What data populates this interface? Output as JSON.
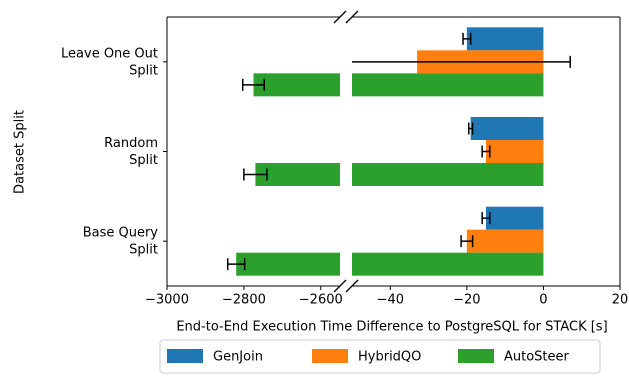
{
  "chart_data": {
    "type": "bar",
    "orientation": "horizontal",
    "xlabel": "End-to-End Execution Time Difference to PostgreSQL for STACK [s]",
    "ylabel": "Dataset Split",
    "categories": [
      "Leave One Out\nSplit",
      "Random\nSplit",
      "Base Query\nSplit"
    ],
    "x_segments": [
      {
        "xlim": [
          -3000,
          -2550
        ],
        "xticks": [
          {
            "value": -3000,
            "label": "−3000"
          },
          {
            "value": -2800,
            "label": "−2800"
          },
          {
            "value": -2600,
            "label": "−2600"
          }
        ]
      },
      {
        "xlim": [
          -50,
          20
        ],
        "xticks": [
          {
            "value": -40,
            "label": "−40"
          },
          {
            "value": -20,
            "label": "−20"
          },
          0,
          20
        ]
      }
    ],
    "series": [
      {
        "name": "GenJoin",
        "color": "#1f77b4",
        "values": [
          -20,
          -19,
          -15
        ],
        "errors": [
          1,
          0.5,
          1
        ]
      },
      {
        "name": "HybridQO",
        "color": "#ff7f0e",
        "values": [
          -33,
          -15,
          -20
        ],
        "errors": [
          40,
          1,
          1.5
        ]
      },
      {
        "name": "AutoSteer",
        "color": "#2ca02c",
        "values": [
          -2775,
          -2770,
          -2820
        ],
        "errors": [
          28,
          30,
          22
        ]
      }
    ],
    "legend": "lower center"
  }
}
